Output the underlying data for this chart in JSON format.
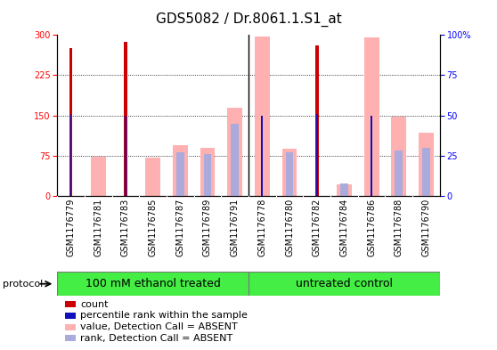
{
  "title": "GDS5082 / Dr.8061.1.S1_at",
  "samples": [
    "GSM1176779",
    "GSM1176781",
    "GSM1176783",
    "GSM1176785",
    "GSM1176787",
    "GSM1176789",
    "GSM1176791",
    "GSM1176778",
    "GSM1176780",
    "GSM1176782",
    "GSM1176784",
    "GSM1176786",
    "GSM1176788",
    "GSM1176790"
  ],
  "count_values": [
    275,
    0,
    287,
    0,
    0,
    0,
    0,
    0,
    0,
    280,
    0,
    0,
    0,
    0
  ],
  "rank_percent": [
    51,
    0,
    50,
    0,
    0,
    0,
    0,
    50,
    0,
    51,
    0,
    50,
    0,
    0
  ],
  "value_absent": [
    0,
    73,
    0,
    72,
    95,
    90,
    165,
    297,
    88,
    0,
    22,
    295,
    148,
    118
  ],
  "rank_absent_percent": [
    0,
    0,
    0,
    0,
    27,
    26,
    45,
    0,
    27,
    0,
    8,
    0,
    28,
    30
  ],
  "groups": [
    {
      "label": "100 mM ethanol treated",
      "start": 0,
      "end": 7
    },
    {
      "label": "untreated control",
      "start": 7,
      "end": 14
    }
  ],
  "left_ylim": [
    0,
    300
  ],
  "right_ylim": [
    0,
    100
  ],
  "left_yticks": [
    0,
    75,
    150,
    225,
    300
  ],
  "right_yticks": [
    0,
    25,
    50,
    75,
    100
  ],
  "count_color": "#cc0000",
  "rank_color": "#1111bb",
  "value_absent_color": "#ffb0b0",
  "rank_absent_color": "#aaaadd",
  "group_color": "#44ee44",
  "bg_color": "#ffffff",
  "label_bg": "#c8c8c8",
  "title_fontsize": 11,
  "tick_fontsize": 7,
  "label_fontsize": 7,
  "group_fontsize": 9,
  "legend_fontsize": 8
}
